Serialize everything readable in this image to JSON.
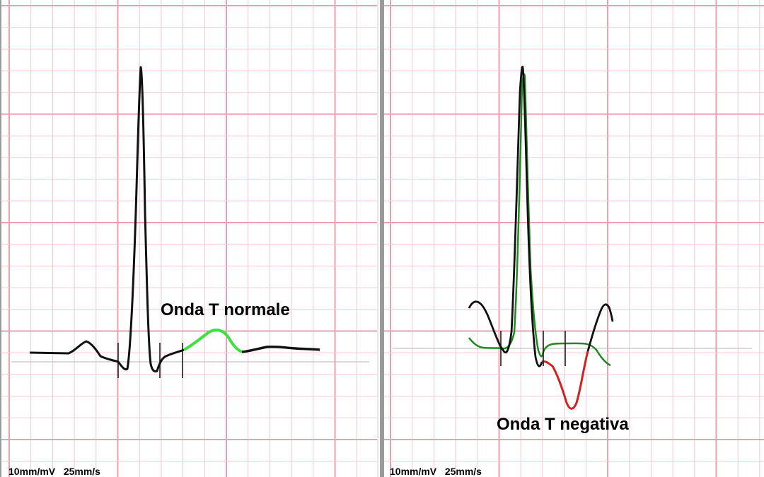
{
  "panels": [
    {
      "annotation": "Onda T normale",
      "calibration": "10mm/mV   25mm/s"
    },
    {
      "annotation": "Onda T negativa",
      "calibration": "10mm/mV   25mm/s"
    }
  ],
  "colors": {
    "grid_minor": "#f4c7d2",
    "grid_major": "#e9a0b3",
    "trace": "#111111",
    "normal_t_wave": "#3ee03e",
    "negative_t_wave": "#d42020",
    "comparison_trace": "#1f8a1f",
    "baseline": "#b5b5b5"
  }
}
